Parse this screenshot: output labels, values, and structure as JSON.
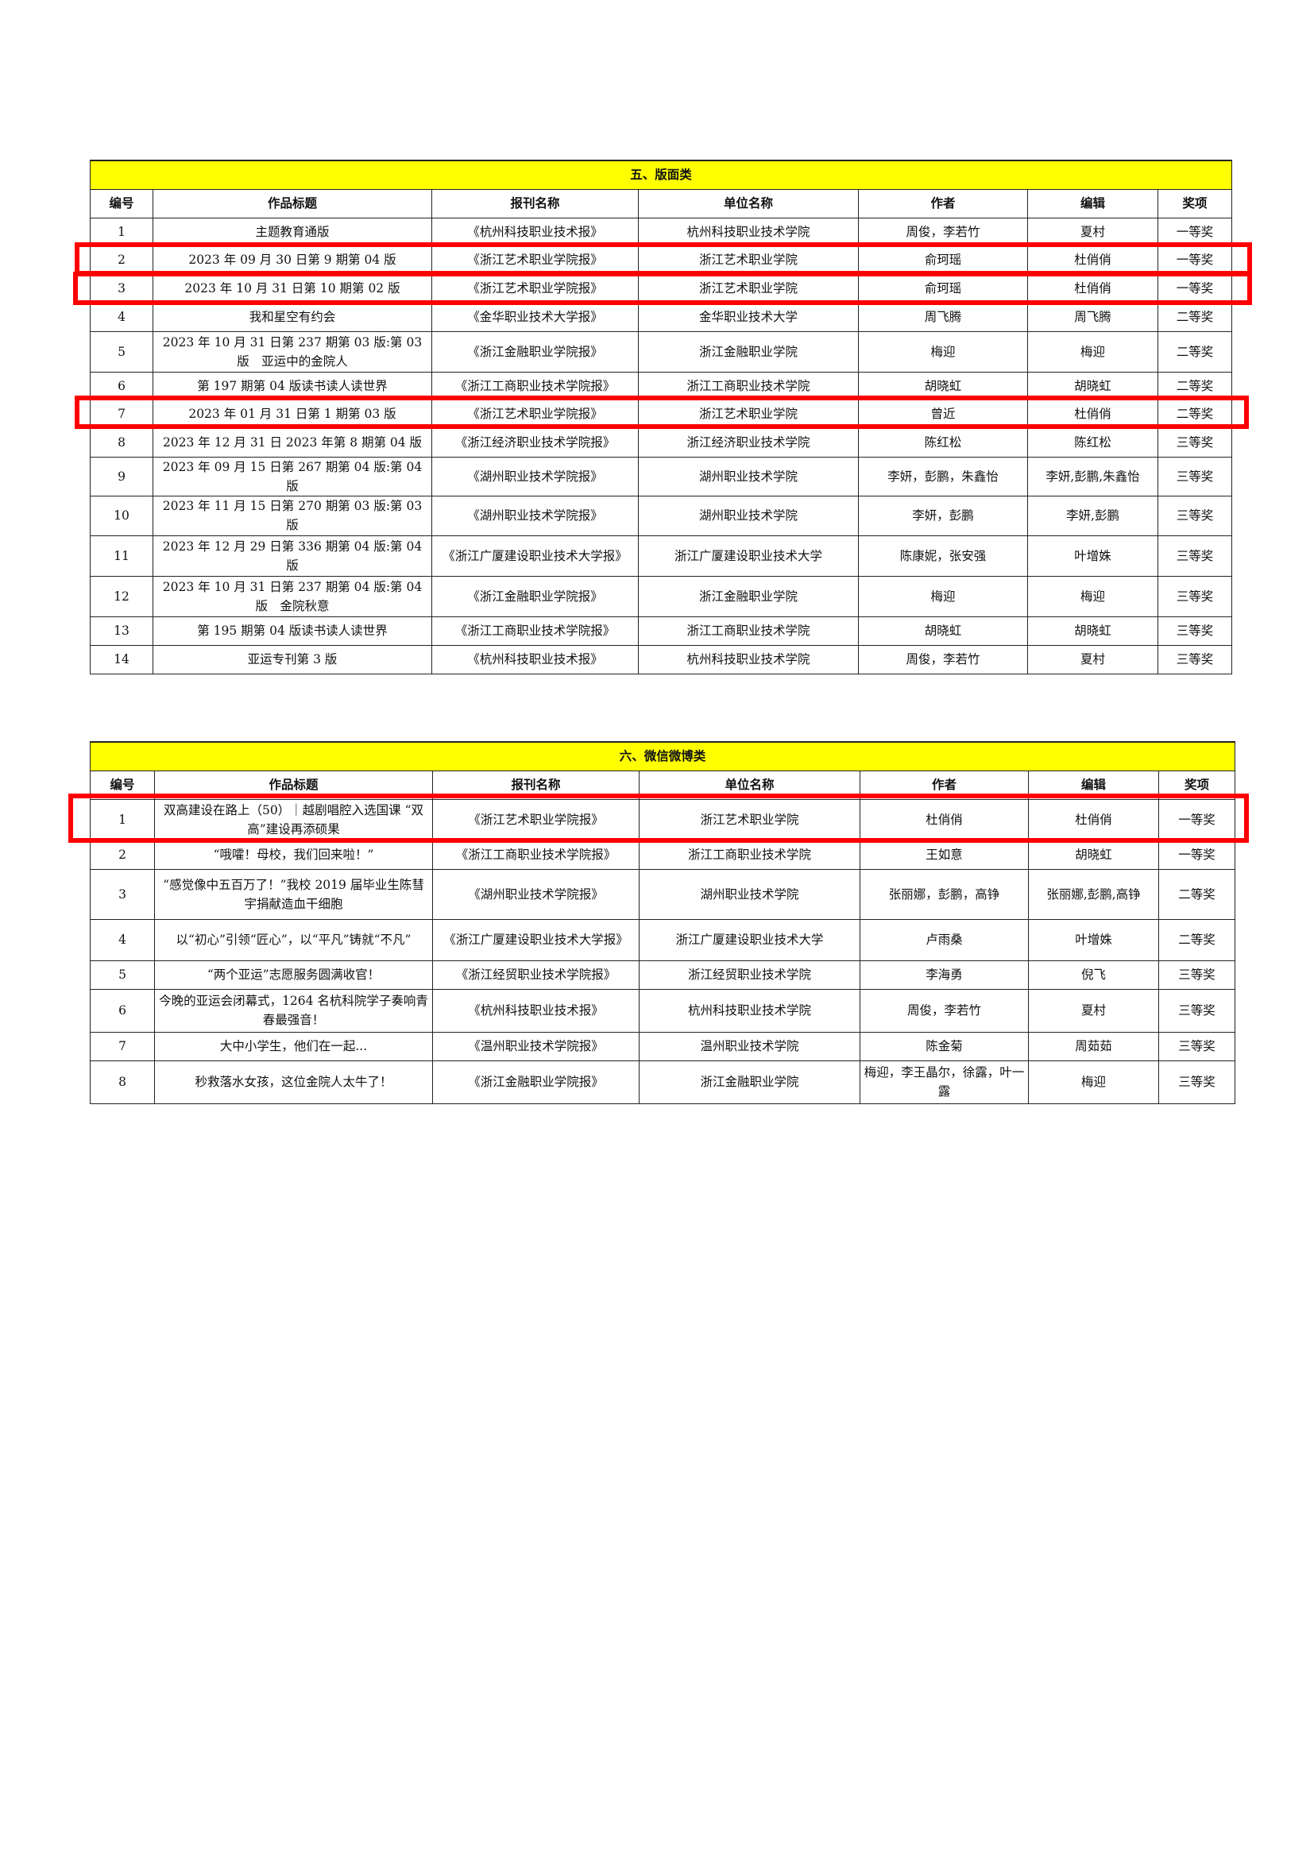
{
  "columns": [
    "编号",
    "作品标题",
    "报刊名称",
    "单位名称",
    "作者",
    "编辑",
    "奖项"
  ],
  "sections": [
    {
      "title": "五、版面类",
      "rows": [
        [
          "1",
          "主题教育通版",
          "《杭州科技职业技术报》",
          "杭州科技职业技术学院",
          "周俊，李若竹",
          "夏村",
          "一等奖"
        ],
        [
          "2",
          "2023 年 09 月 30 日第 9 期第 04 版",
          "《浙江艺术职业学院报》",
          "浙江艺术职业学院",
          "俞珂瑶",
          "杜俏俏",
          "一等奖"
        ],
        [
          "3",
          "2023 年 10 月 31 日第 10 期第 02 版",
          "《浙江艺术职业学院报》",
          "浙江艺术职业学院",
          "俞珂瑶",
          "杜俏俏",
          "一等奖"
        ],
        [
          "4",
          "我和星空有约会",
          "《金华职业技术大学报》",
          "金华职业技术大学",
          "周飞腾",
          "周飞腾",
          "二等奖"
        ],
        [
          "5",
          "2023 年 10 月 31 日第 237 期第 03 版:第 03 版　亚运中的金院人",
          "《浙江金融职业学院报》",
          "浙江金融职业学院",
          "梅迎",
          "梅迎",
          "二等奖"
        ],
        [
          "6",
          "第 197 期第 04 版读书读人读世界",
          "《浙江工商职业技术学院报》",
          "浙江工商职业技术学院",
          "胡晓虹",
          "胡晓虹",
          "二等奖"
        ],
        [
          "7",
          "2023 年 01 月 31 日第 1 期第 03 版",
          "《浙江艺术职业学院报》",
          "浙江艺术职业学院",
          "曾近",
          "杜俏俏",
          "二等奖"
        ],
        [
          "8",
          "2023 年 12 月 31 日 2023 年第 8 期第 04 版",
          "《浙江经济职业技术学院报》",
          "浙江经济职业技术学院",
          "陈红松",
          "陈红松",
          "三等奖"
        ],
        [
          "9",
          "2023 年 09 月 15 日第 267 期第 04 版:第 04 版",
          "《湖州职业技术学院报》",
          "湖州职业技术学院",
          "李妍，彭鹏，朱鑫怡",
          "李妍,彭鹏,朱鑫怡",
          "三等奖"
        ],
        [
          "10",
          "2023 年 11 月 15 日第 270 期第 03 版:第 03 版",
          "《湖州职业技术学院报》",
          "湖州职业技术学院",
          "李妍，彭鹏",
          "李妍,彭鹏",
          "三等奖"
        ],
        [
          "11",
          "2023 年 12 月 29 日第 336 期第 04 版:第 04 版",
          "《浙江广厦建设职业技术大学报》",
          "浙江广厦建设职业技术大学",
          "陈康妮，张安强",
          "叶增姝",
          "三等奖"
        ],
        [
          "12",
          "2023 年 10 月 31 日第 237 期第 04 版:第 04 版　金院秋意",
          "《浙江金融职业学院报》",
          "浙江金融职业学院",
          "梅迎",
          "梅迎",
          "三等奖"
        ],
        [
          "13",
          "第 195 期第 04 版读书读人读世界",
          "《浙江工商职业技术学院报》",
          "浙江工商职业技术学院",
          "胡晓虹",
          "胡晓虹",
          "三等奖"
        ],
        [
          "14",
          "亚运专刊第 3 版",
          "《杭州科技职业技术报》",
          "杭州科技职业技术学院",
          "周俊，李若竹",
          "夏村",
          "三等奖"
        ]
      ]
    },
    {
      "title": "六、微信微博类",
      "rows": [
        [
          "1",
          "双高建设在路上（50）｜越剧唱腔入选国课 “双高”建设再添硕果",
          "《浙江艺术职业学院报》",
          "浙江艺术职业学院",
          "杜俏俏",
          "杜俏俏",
          "一等奖"
        ],
        [
          "2",
          "“哦嚯！母校，我们回来啦！”",
          "《浙江工商职业技术学院报》",
          "浙江工商职业技术学院",
          "王如意",
          "胡晓虹",
          "一等奖"
        ],
        [
          "3",
          "“感觉像中五百万了！”我校 2019 届毕业生陈彗宇捐献造血干细胞",
          "《湖州职业技术学院报》",
          "湖州职业技术学院",
          "张丽娜，彭鹏，高铮",
          "张丽娜,彭鹏,高铮",
          "二等奖"
        ],
        [
          "4",
          "以“初心”引领“匠心”，以“平凡”铸就“不凡”",
          "《浙江广厦建设职业技术大学报》",
          "浙江广厦建设职业技术大学",
          "卢雨桑",
          "叶增姝",
          "二等奖"
        ],
        [
          "5",
          "“两个亚运”志愿服务圆满收官！",
          "《浙江经贸职业技术学院报》",
          "浙江经贸职业技术学院",
          "李海勇",
          "倪飞",
          "三等奖"
        ],
        [
          "6",
          "今晚的亚运会闭幕式，1264 名杭科院学子奏响青春最强音！",
          "《杭州科技职业技术报》",
          "杭州科技职业技术学院",
          "周俊，李若竹",
          "夏村",
          "三等奖"
        ],
        [
          "7",
          "大中小学生，他们在一起...",
          "《温州职业技术学院报》",
          "温州职业技术学院",
          "陈金菊",
          "周茹茹",
          "三等奖"
        ],
        [
          "8",
          "秒救落水女孩，这位金院人太牛了！",
          "《浙江金融职业学院报》",
          "浙江金融职业学院",
          "梅迎，李王晶尔，徐露，叶一露",
          "梅迎",
          "三等奖"
        ]
      ]
    }
  ],
  "highlight_color": "#ff0000",
  "caption_color": "#ffff00"
}
